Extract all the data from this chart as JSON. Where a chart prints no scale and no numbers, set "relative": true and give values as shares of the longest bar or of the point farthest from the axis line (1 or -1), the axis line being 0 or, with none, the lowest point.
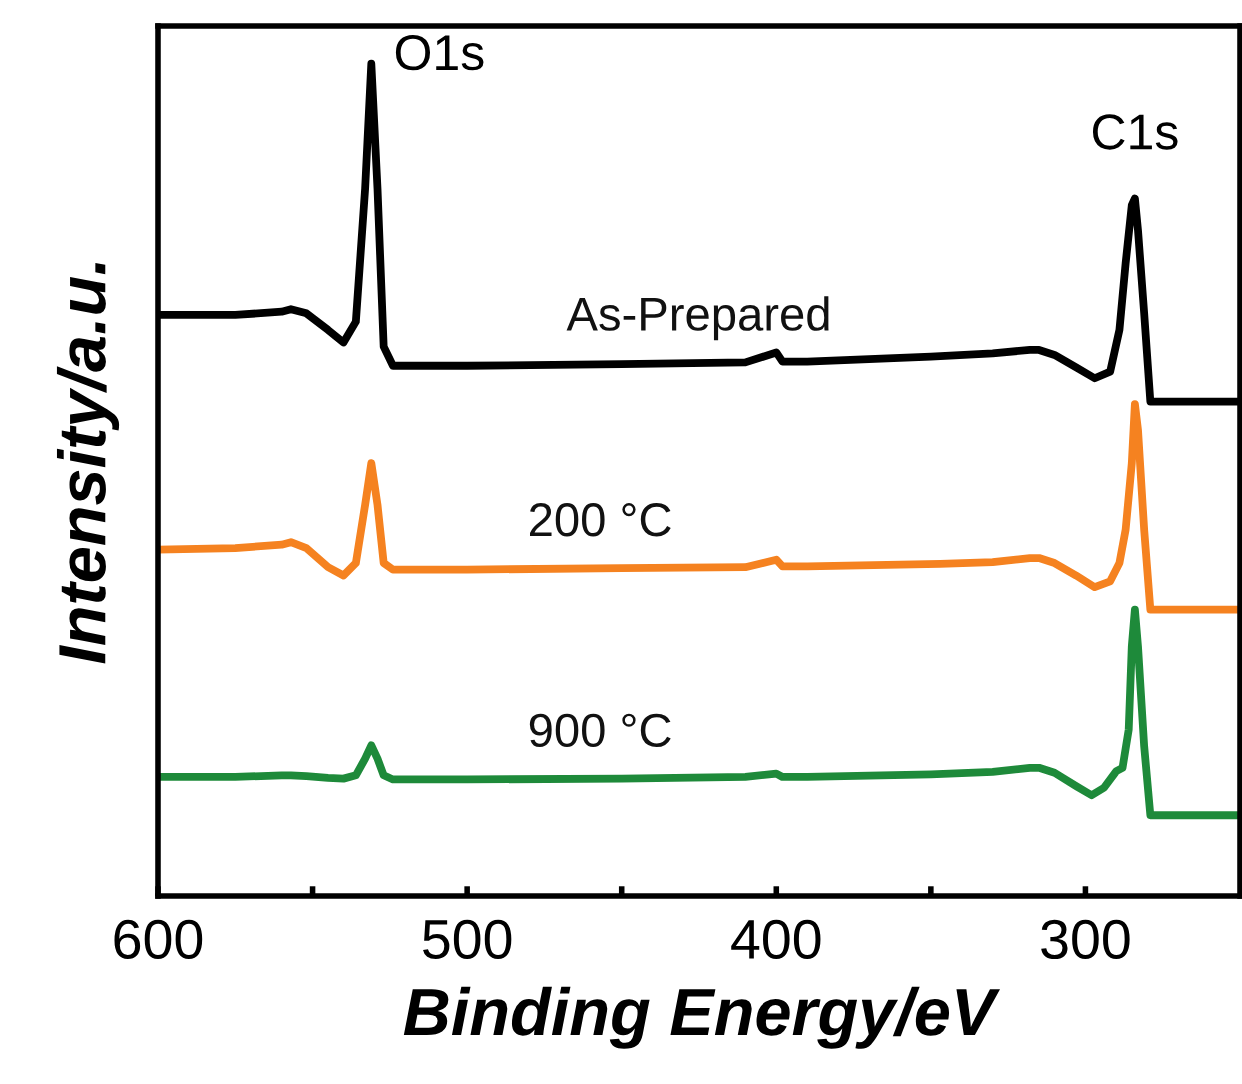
{
  "chart_data": {
    "type": "line",
    "xlabel": "Binding Energy/eV",
    "ylabel": "Intensity/a.u.",
    "relative": true,
    "xlim": [
      600,
      250
    ],
    "xticks": [
      600,
      {
        "value": 550,
        "label": null
      },
      500,
      {
        "value": 450,
        "label": null
      },
      400,
      {
        "value": 350,
        "label": null
      },
      300
    ],
    "tick_labels": "x",
    "grid": false,
    "legend": false,
    "annotations": [
      {
        "text": "O1s",
        "x": 531,
        "y": 1.0
      },
      {
        "text": "C1s",
        "x": 284,
        "y": 0.838
      }
    ],
    "series": [
      {
        "name": "As-Prepared",
        "color": "#000000",
        "x": [
          600,
          575,
          560,
          557,
          552,
          545,
          540,
          536,
          533,
          531,
          529,
          527,
          524,
          500,
          450,
          410,
          400,
          398,
          390,
          350,
          330,
          318,
          315,
          310,
          303,
          297,
          292,
          289,
          287,
          285,
          284,
          283,
          281,
          279,
          275,
          250
        ],
        "values": [
          0.698,
          0.698,
          0.702,
          0.705,
          0.7,
          0.68,
          0.665,
          0.69,
          0.85,
          1.0,
          0.85,
          0.66,
          0.637,
          0.637,
          0.639,
          0.641,
          0.653,
          0.642,
          0.642,
          0.648,
          0.652,
          0.656,
          0.656,
          0.65,
          0.635,
          0.622,
          0.63,
          0.68,
          0.76,
          0.83,
          0.838,
          0.8,
          0.7,
          0.594,
          0.594,
          0.594
        ]
      },
      {
        "name": "200 °C",
        "color": "#f58220",
        "x": [
          600,
          575,
          560,
          557,
          552,
          545,
          540,
          536,
          533,
          531,
          529,
          527,
          524,
          500,
          450,
          410,
          400,
          398,
          390,
          347,
          330,
          318,
          315,
          310,
          303,
          297,
          292,
          289,
          287,
          285,
          284,
          283,
          281,
          279,
          275,
          250
        ],
        "values": [
          0.416,
          0.418,
          0.422,
          0.425,
          0.418,
          0.395,
          0.385,
          0.4,
          0.47,
          0.52,
          0.47,
          0.4,
          0.392,
          0.392,
          0.394,
          0.395,
          0.404,
          0.396,
          0.396,
          0.399,
          0.401,
          0.406,
          0.406,
          0.4,
          0.385,
          0.371,
          0.378,
          0.4,
          0.44,
          0.52,
          0.591,
          0.56,
          0.44,
          0.344,
          0.344,
          0.344
        ]
      },
      {
        "name": "900 °C",
        "color": "#1e8a3a",
        "x": [
          600,
          575,
          560,
          557,
          552,
          545,
          540,
          536,
          533,
          531,
          529,
          527,
          524,
          500,
          450,
          410,
          400,
          398,
          390,
          350,
          330,
          318,
          315,
          310,
          303,
          298,
          294,
          290,
          288,
          286,
          285,
          284,
          283,
          281,
          279,
          275,
          250
        ],
        "values": [
          0.143,
          0.143,
          0.145,
          0.145,
          0.144,
          0.142,
          0.141,
          0.145,
          0.165,
          0.181,
          0.165,
          0.145,
          0.14,
          0.14,
          0.141,
          0.143,
          0.147,
          0.143,
          0.143,
          0.146,
          0.149,
          0.154,
          0.154,
          0.148,
          0.132,
          0.121,
          0.13,
          0.15,
          0.154,
          0.2,
          0.3,
          0.344,
          0.3,
          0.18,
          0.097,
          0.097,
          0.097
        ]
      }
    ]
  }
}
